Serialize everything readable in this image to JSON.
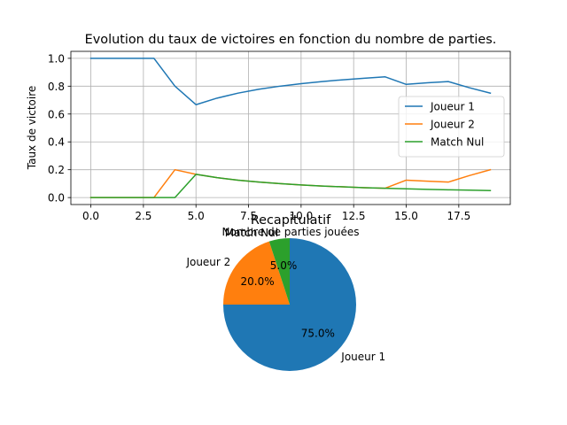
{
  "chart_data": [
    {
      "type": "line",
      "title": "Evolution du taux de victoires en fonction du nombre de parties.",
      "xlabel": "Nombre de parties jouées",
      "ylabel": "Taux de victoire",
      "xlim": [
        -0.95,
        19.95
      ],
      "ylim": [
        -0.05,
        1.05
      ],
      "xticks": [
        0.0,
        2.5,
        5.0,
        7.5,
        10.0,
        12.5,
        15.0,
        17.5
      ],
      "xtick_labels": [
        "0.0",
        "2.5",
        "5.0",
        "7.5",
        "10.0",
        "12.5",
        "15.0",
        "17.5"
      ],
      "yticks": [
        0.0,
        0.2,
        0.4,
        0.6,
        0.8,
        1.0
      ],
      "ytick_labels": [
        "0.0",
        "0.2",
        "0.4",
        "0.6",
        "0.8",
        "1.0"
      ],
      "grid": true,
      "legend_position": "center-right",
      "x": [
        0,
        1,
        2,
        3,
        4,
        5,
        6,
        7,
        8,
        9,
        10,
        11,
        12,
        13,
        14,
        15,
        16,
        17,
        18,
        19
      ],
      "series": [
        {
          "name": "Joueur 1",
          "color": "#1f77b4",
          "values": [
            1.0,
            1.0,
            1.0,
            1.0,
            0.8,
            0.667,
            0.714,
            0.75,
            0.778,
            0.8,
            0.818,
            0.833,
            0.846,
            0.857,
            0.867,
            0.813,
            0.824,
            0.833,
            0.789,
            0.75
          ]
        },
        {
          "name": "Joueur 2",
          "color": "#ff7f0e",
          "values": [
            0.0,
            0.0,
            0.0,
            0.0,
            0.2,
            0.167,
            0.143,
            0.125,
            0.111,
            0.1,
            0.091,
            0.083,
            0.077,
            0.071,
            0.067,
            0.125,
            0.118,
            0.111,
            0.158,
            0.2
          ]
        },
        {
          "name": "Match Nul",
          "color": "#2ca02c",
          "values": [
            0.0,
            0.0,
            0.0,
            0.0,
            0.0,
            0.167,
            0.143,
            0.125,
            0.111,
            0.1,
            0.091,
            0.083,
            0.077,
            0.071,
            0.067,
            0.063,
            0.059,
            0.056,
            0.053,
            0.05
          ]
        }
      ]
    },
    {
      "type": "pie",
      "title": "Recapitulatif",
      "slices": [
        {
          "label": "Joueur 1",
          "value": 75.0,
          "pct_label": "75.0%",
          "color": "#1f77b4"
        },
        {
          "label": "Joueur 2",
          "value": 20.0,
          "pct_label": "20.0%",
          "color": "#ff7f0e"
        },
        {
          "label": "Match Nul",
          "value": 5.0,
          "pct_label": "5.0%",
          "color": "#2ca02c"
        }
      ]
    }
  ]
}
